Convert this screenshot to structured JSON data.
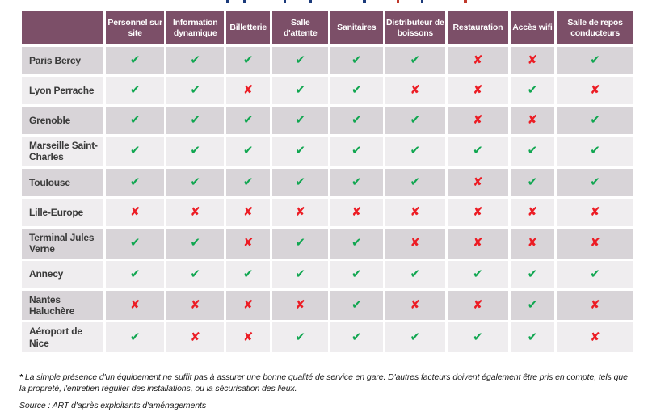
{
  "chart_data": {
    "type": "table",
    "columns": [
      "Personnel sur site",
      "Information dynamique",
      "Billetterie",
      "Salle d'attente",
      "Sanitaires",
      "Distributeur de boissons",
      "Restauration",
      "Accès wifi",
      "Salle de repos conducteurs"
    ],
    "rows": [
      {
        "label": "Paris Bercy",
        "values": [
          true,
          true,
          true,
          true,
          true,
          true,
          false,
          false,
          true
        ]
      },
      {
        "label": "Lyon Perrache",
        "values": [
          true,
          true,
          false,
          true,
          true,
          false,
          false,
          true,
          false
        ]
      },
      {
        "label": "Grenoble",
        "values": [
          true,
          true,
          true,
          true,
          true,
          true,
          false,
          false,
          true
        ]
      },
      {
        "label": "Marseille Saint-Charles",
        "values": [
          true,
          true,
          true,
          true,
          true,
          true,
          true,
          true,
          true
        ]
      },
      {
        "label": "Toulouse",
        "values": [
          true,
          true,
          true,
          true,
          true,
          true,
          false,
          true,
          true
        ]
      },
      {
        "label": "Lille-Europe",
        "values": [
          false,
          false,
          false,
          false,
          false,
          false,
          false,
          false,
          false
        ]
      },
      {
        "label": "Terminal Jules Verne",
        "values": [
          true,
          true,
          false,
          true,
          true,
          false,
          false,
          false,
          false
        ]
      },
      {
        "label": "Annecy",
        "values": [
          true,
          true,
          true,
          true,
          true,
          true,
          true,
          true,
          true
        ]
      },
      {
        "label": "Nantes Haluchère",
        "values": [
          false,
          false,
          false,
          false,
          true,
          false,
          false,
          true,
          false
        ]
      },
      {
        "label": "Aéroport de Nice",
        "values": [
          true,
          false,
          false,
          true,
          true,
          true,
          true,
          true,
          false
        ]
      }
    ]
  },
  "symbols": {
    "present": "✔",
    "absent": "✘"
  },
  "footnote": {
    "marker": "*",
    "text": "La simple présence d'un équipement ne suffit pas à assurer une bonne qualité de service en gare. D'autres facteurs doivent également être pris en compte, tels que la propreté, l'entretien régulier des installations, ou la sécurisation des lieux."
  },
  "source": "Source : ART d'après exploitants d'aménagements",
  "colors": {
    "header_bg": "#7c4f68",
    "row_dark": "#d8d4d8",
    "row_light": "#efedef",
    "check_green": "#10a650",
    "cross_red": "#ec1c24",
    "footnote_text": "#1a1a1a"
  }
}
